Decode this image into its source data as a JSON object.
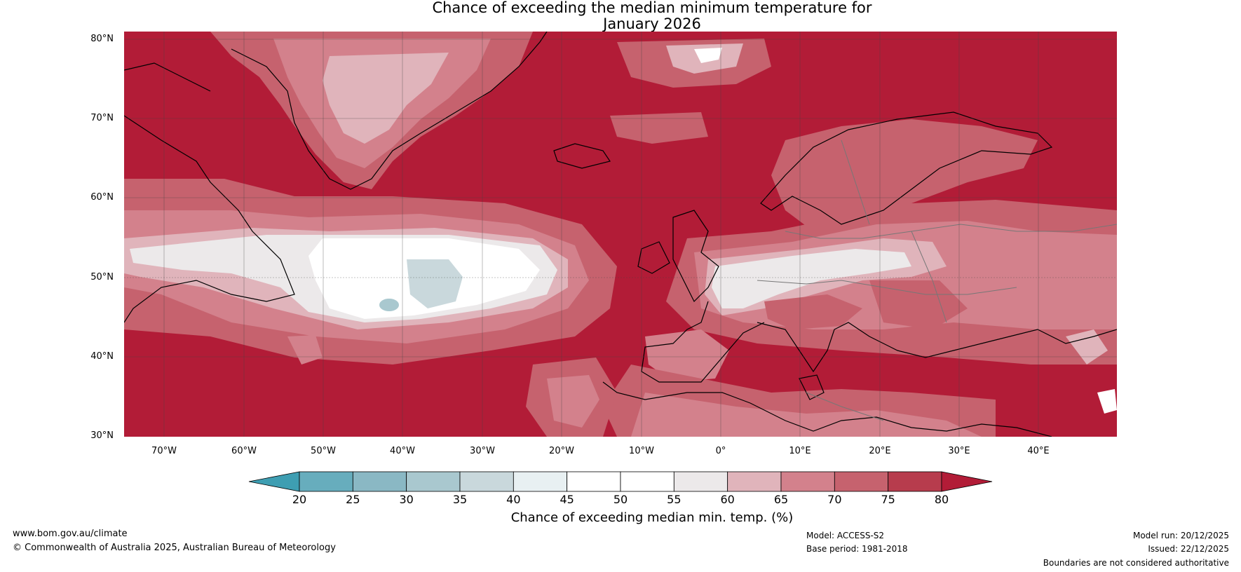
{
  "title": {
    "line1": "Chance of exceeding the median minimum temperature for",
    "line2": "January 2026"
  },
  "map": {
    "region": "North Atlantic and Europe",
    "latitudes": [
      "80°N",
      "70°N",
      "60°N",
      "50°N",
      "40°N",
      "30°N"
    ],
    "longitudes": [
      "70°W",
      "60°W",
      "50°W",
      "40°W",
      "30°W",
      "20°W",
      "10°W",
      "0°",
      "10°E",
      "20°E",
      "30°E",
      "40°E"
    ]
  },
  "colorbar": {
    "ticks": [
      "20",
      "25",
      "30",
      "35",
      "40",
      "45",
      "50",
      "55",
      "60",
      "65",
      "70",
      "75",
      "80"
    ],
    "colors": [
      "#67adbd",
      "#8ab8c4",
      "#a9c8cf",
      "#c9d8dc",
      "#e8f0f2",
      "#ffffff",
      "#ffffff",
      "#ece9ea",
      "#e0b4bb",
      "#d3818c",
      "#c6626e",
      "#b73c4d"
    ],
    "under_color": "#3e9eb2",
    "over_color": "#b21c37",
    "label": "Chance of exceeding median min. temp. (%)"
  },
  "footer": {
    "website": "www.bom.gov.au/climate",
    "copyright": "© Commonwealth of Australia 2025, Australian Bureau of Meteorology",
    "model": "Model: ACCESS-S2",
    "base_period": "Base period: 1981-2018",
    "model_run": "Model run: 20/12/2025",
    "issued": "Issued: 22/12/2025",
    "disclaimer": "Boundaries are not considered authoritative"
  },
  "colors": {
    "high": "#b21c37",
    "mid_high": "#c6626e",
    "mid": "#d3818c",
    "light": "#e0b4bb",
    "neutral": "#ece9ea",
    "white": "#ffffff",
    "cool": "#c9d8dc"
  }
}
